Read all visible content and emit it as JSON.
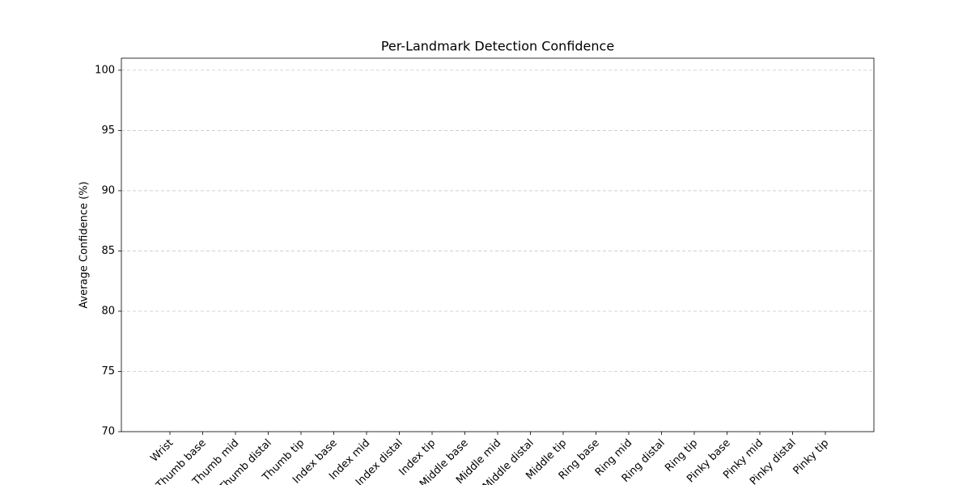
{
  "chart_data": {
    "type": "bar",
    "title": "Per-Landmark Detection Confidence",
    "ylabel": "Average Confidence (%)",
    "categories": [
      "Wrist",
      "Thumb base",
      "Thumb mid",
      "Thumb distal",
      "Thumb tip",
      "Index base",
      "Index mid",
      "Index distal",
      "Index tip",
      "Middle base",
      "Middle mid",
      "Middle distal",
      "Middle tip",
      "Ring base",
      "Ring mid",
      "Ring distal",
      "Ring tip",
      "Pinky base",
      "Pinky mid",
      "Pinky distal",
      "Pinky tip"
    ],
    "ylim": [
      70,
      101
    ],
    "yticks": [
      70,
      75,
      80,
      85,
      90,
      95,
      100
    ],
    "grid": true
  }
}
